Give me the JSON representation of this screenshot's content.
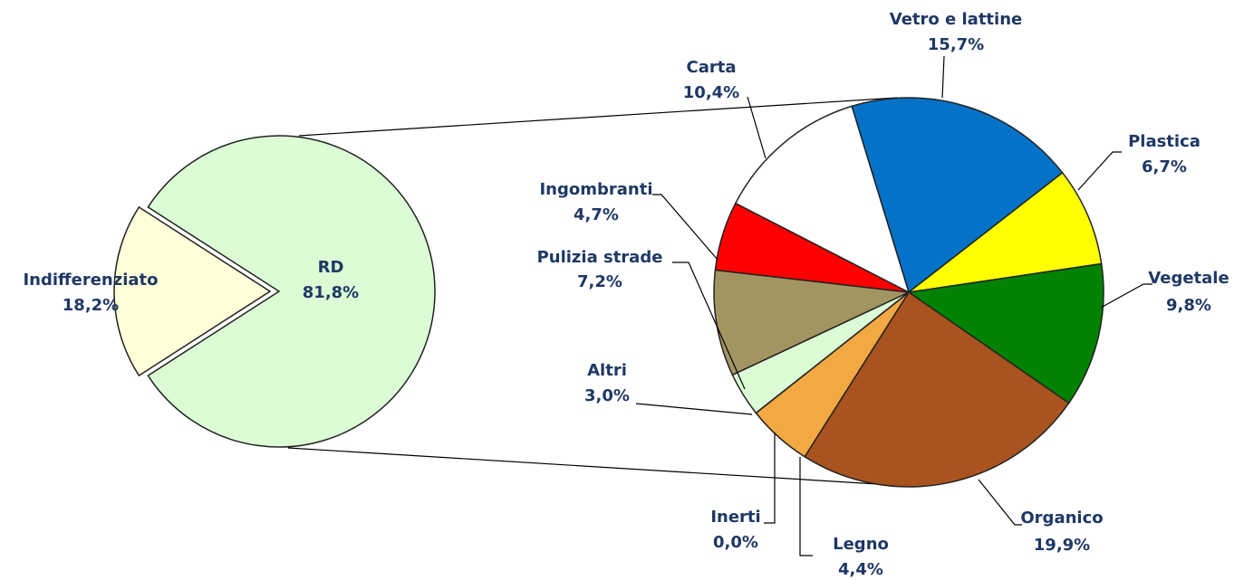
{
  "chart_data": [
    {
      "type": "pie",
      "categories": [
        "Indifferenziato",
        "RD"
      ],
      "values": [
        18.2,
        81.8
      ],
      "value_labels": [
        "18,2%",
        "81,8%"
      ],
      "colors": [
        "#ffffd9",
        "#dcfcd6"
      ]
    },
    {
      "type": "pie",
      "categories": [
        "Vetro e lattine",
        "Plastica",
        "Vegetale",
        "Organico",
        "Legno",
        "Inerti",
        "Altri",
        "Pulizia strade",
        "Ingombranti",
        "Carta"
      ],
      "values": [
        15.7,
        6.7,
        9.8,
        19.9,
        4.4,
        0.0,
        3.0,
        7.2,
        4.7,
        10.4
      ],
      "value_labels": [
        "15,7%",
        "6,7%",
        "9,8%",
        "19,9%",
        "4,4%",
        "0,0%",
        "3,0%",
        "7,2%",
        "4,7%",
        "10,4%"
      ],
      "colors": [
        "#0572c8",
        "#ffff00",
        "#018201",
        "#a9531f",
        "#f2a843",
        "#c8c8c8",
        "#dcfcd6",
        "#a39562",
        "#ff0000",
        "#ffffff"
      ]
    }
  ]
}
